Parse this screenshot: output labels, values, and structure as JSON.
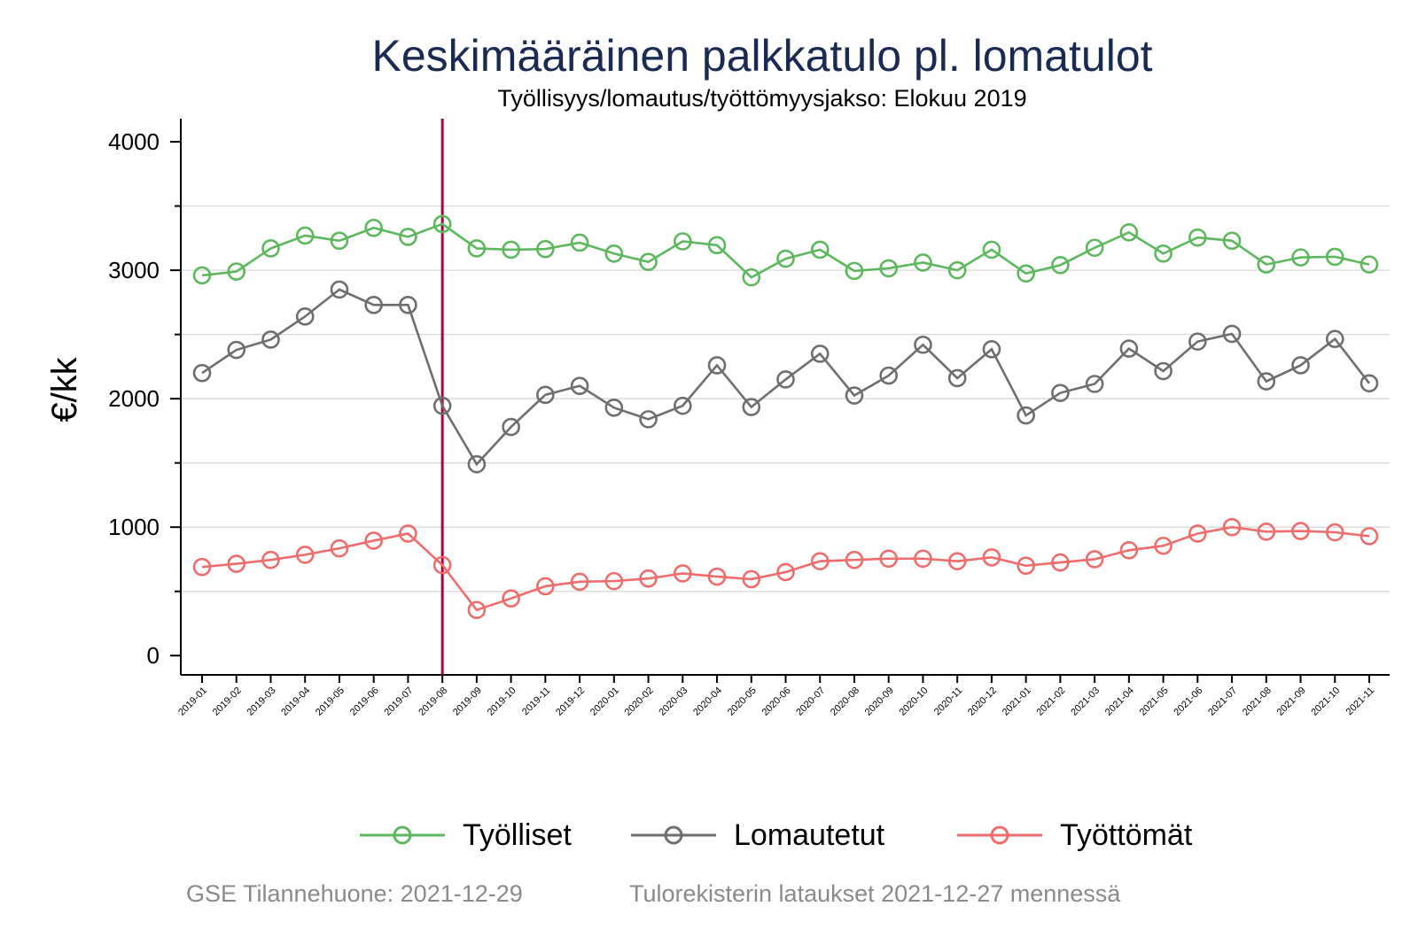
{
  "chart_data": {
    "type": "line",
    "title": "Keskimääräinen palkkatulo pl. lomatulot",
    "subtitle": "Työllisyys/lomautus/työttömyysjakso: Elokuu 2019",
    "xlabel": "",
    "ylabel": "€/kk",
    "ylim": [
      -150,
      4180
    ],
    "yticks": [
      0,
      1000,
      2000,
      3000,
      4000
    ],
    "grid": true,
    "legend_position": "bottom",
    "reference_line": {
      "x": "2019-08",
      "color": "#b0003a"
    },
    "categories": [
      "2019-01",
      "2019-02",
      "2019-03",
      "2019-04",
      "2019-05",
      "2019-06",
      "2019-07",
      "2019-08",
      "2019-09",
      "2019-10",
      "2019-11",
      "2019-12",
      "2020-01",
      "2020-02",
      "2020-03",
      "2020-04",
      "2020-05",
      "2020-06",
      "2020-07",
      "2020-08",
      "2020-09",
      "2020-10",
      "2020-11",
      "2020-12",
      "2021-01",
      "2021-02",
      "2021-03",
      "2021-04",
      "2021-05",
      "2021-06",
      "2021-07",
      "2021-08",
      "2021-09",
      "2021-10",
      "2021-11"
    ],
    "series": [
      {
        "name": "Työlliset",
        "color": "#5cb85c",
        "values": [
          2960,
          2990,
          3170,
          3270,
          3230,
          3330,
          3260,
          3360,
          3170,
          3160,
          3165,
          3215,
          3130,
          3065,
          3225,
          3195,
          2945,
          3090,
          3160,
          2995,
          3015,
          3060,
          3000,
          3160,
          2975,
          3040,
          3175,
          3295,
          3130,
          3255,
          3230,
          3045,
          3100,
          3105,
          3045
        ]
      },
      {
        "name": "Lomautetut",
        "color": "#6e6e6e",
        "values": [
          2200,
          2380,
          2460,
          2640,
          2850,
          2730,
          2730,
          1945,
          1490,
          1780,
          2030,
          2100,
          1930,
          1840,
          1945,
          2260,
          1935,
          2150,
          2350,
          2025,
          2180,
          2420,
          2160,
          2385,
          1870,
          2045,
          2115,
          2390,
          2215,
          2445,
          2505,
          2135,
          2260,
          2465,
          2120
        ]
      },
      {
        "name": "Työttömät",
        "color": "#f06b6b",
        "values": [
          690,
          715,
          745,
          785,
          835,
          895,
          950,
          705,
          355,
          445,
          540,
          575,
          580,
          600,
          640,
          615,
          595,
          650,
          735,
          745,
          755,
          755,
          735,
          765,
          700,
          725,
          750,
          820,
          855,
          950,
          1000,
          965,
          970,
          960,
          930
        ]
      }
    ]
  },
  "footer": {
    "source": "GSE Tilannehuone: 2021-12-29",
    "note": "Tulorekisterin lataukset 2021-12-27 mennessä"
  }
}
